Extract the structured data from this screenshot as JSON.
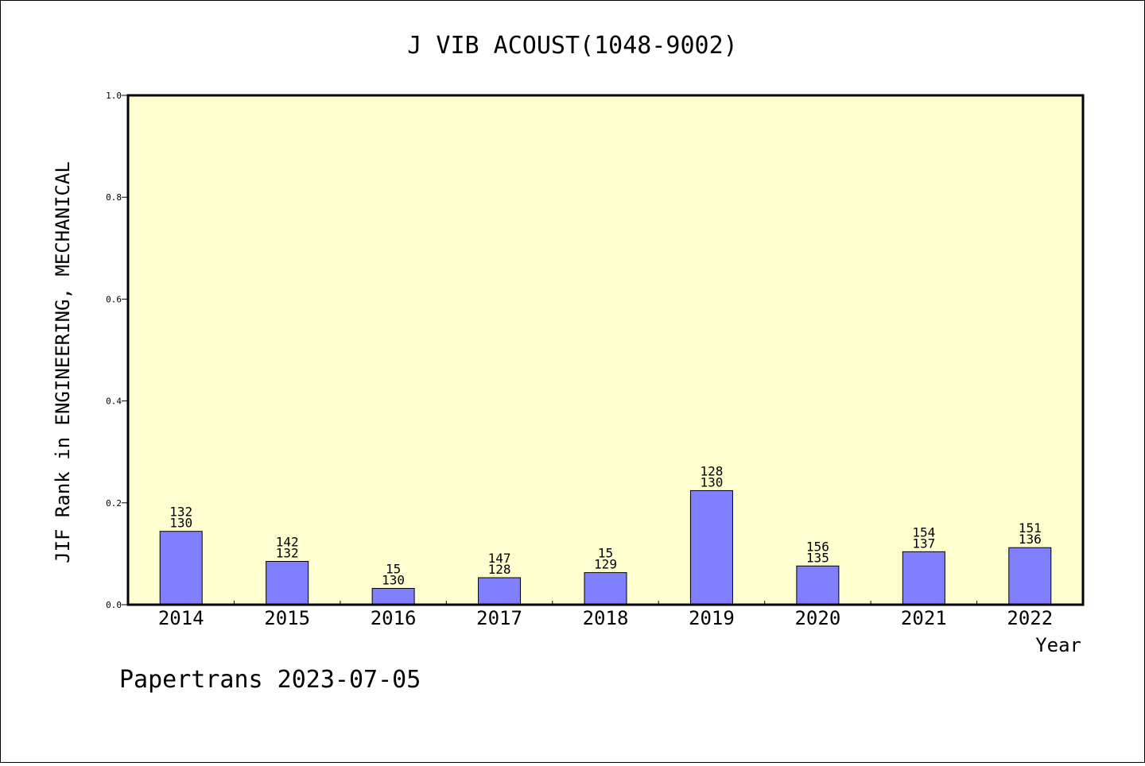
{
  "chart_data": {
    "type": "bar",
    "title": "J VIB ACOUST(1048-9002)",
    "xlabel": "Year",
    "ylabel": "JIF Rank in ENGINEERING, MECHANICAL",
    "ylim": [
      0,
      1.0
    ],
    "yticks": [
      "0.0",
      "0.2",
      "0.4",
      "0.6",
      "0.8",
      "1.0"
    ],
    "categories": [
      "2014",
      "2015",
      "2016",
      "2017",
      "2018",
      "2019",
      "2020",
      "2021",
      "2022"
    ],
    "values": [
      0.144,
      0.085,
      0.032,
      0.053,
      0.063,
      0.224,
      0.076,
      0.104,
      0.112
    ],
    "labels_top": [
      "132",
      "142",
      "15",
      "147",
      "15",
      "128",
      "156",
      "154",
      "151"
    ],
    "labels_bottom": [
      "130",
      "132",
      "130",
      "128",
      "129",
      "130",
      "135",
      "137",
      "136"
    ],
    "grid": false,
    "colors": {
      "plot_bg": "#ffffd0",
      "bar": "#8080ff"
    }
  },
  "footer": "Papertrans 2023-07-05"
}
